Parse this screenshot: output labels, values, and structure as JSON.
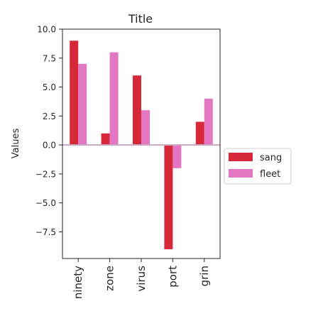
{
  "chart_data": {
    "type": "bar",
    "title": "Title",
    "xlabel": "",
    "ylabel": "Values",
    "categories": [
      "ninety",
      "zone",
      "virus",
      "port",
      "grin"
    ],
    "series": [
      {
        "name": "sang",
        "color": "#d62839",
        "values": [
          9,
          1,
          6,
          -9,
          2
        ]
      },
      {
        "name": "fleet",
        "color": "#e377c2",
        "values": [
          7,
          8,
          3,
          -2,
          4
        ]
      }
    ],
    "ylim": [
      -9.8,
      10
    ],
    "yticks": [
      -7.5,
      -5.0,
      -2.5,
      0.0,
      2.5,
      5.0,
      7.5,
      10.0
    ],
    "ytick_labels": [
      "−7.5",
      "−5.0",
      "−2.5",
      "0.0",
      "2.5",
      "5.0",
      "7.5",
      "10.0"
    ],
    "grid": false,
    "legend_position": "right",
    "zero_line_color": "#c8a8c0"
  }
}
